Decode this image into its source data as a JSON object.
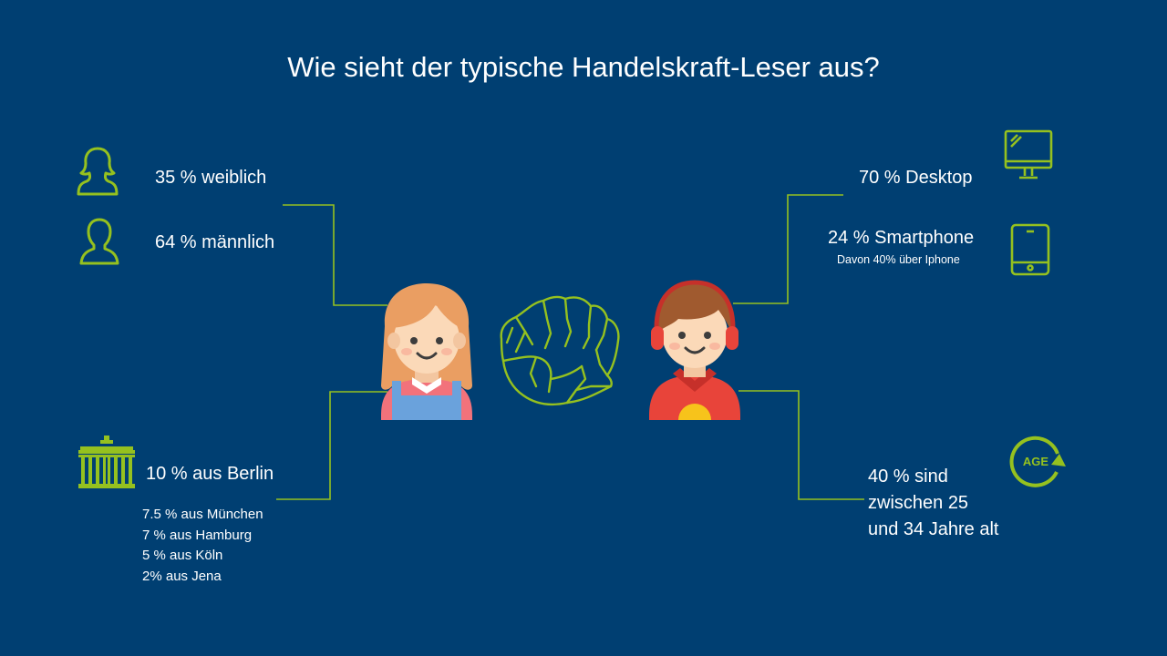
{
  "title": "Wie sieht der typische Handelskraft-Leser aus?",
  "left": {
    "female": "35 % weiblich",
    "male": "64 % männlich",
    "berlin": "10 % aus Berlin",
    "cities": [
      "7.5 % aus München",
      "7 % aus Hamburg",
      "5 % aus Köln",
      "2% aus Jena"
    ]
  },
  "right": {
    "desktop": "70 % Desktop",
    "smartphone": "24 % Smartphone",
    "smartphone_note": "Davon 40% über Iphone",
    "age_line1": "40 % sind",
    "age_line2": "zwischen 25",
    "age_line3": "und 34 Jahre alt",
    "age_icon_text": "AGE"
  },
  "colors": {
    "background": "#003f72",
    "accent": "#95c11f",
    "text": "#ffffff"
  },
  "icons": [
    "female-person-icon",
    "male-person-icon",
    "brandenburg-gate-icon",
    "desktop-monitor-icon",
    "smartphone-icon",
    "age-cycle-icon",
    "girl-avatar",
    "boy-avatar",
    "pointing-fist-icon"
  ]
}
